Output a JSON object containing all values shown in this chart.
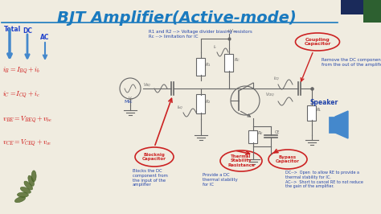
{
  "title": "BJT Amplifier(Active-mode)",
  "title_color": "#1a7abf",
  "title_fontsize": 14,
  "bg_color": "#f0ece0",
  "left_labels": {
    "total": "Total",
    "dc": "DC",
    "ac": "AC",
    "eq1": "$i_B= I_{BQ} + i_b$",
    "eq2": "$i_C= I_{CQ} + i_c$",
    "eq3": "$v_{BE}= V_{BEQ} + v_{be}$",
    "eq4": "$v_{CE}= V_{CEQ} + v_{ce}$"
  },
  "annotations": {
    "coupling": "Coupling\nCapacitor",
    "blocking": "Blocknig\nCapacitor",
    "thermal": "Thermal\nStability\nResistance",
    "bypass": "Bypass\nCapacitor",
    "coupling_desc": "Remove the DC component\nfrom the out of the amplifier",
    "blocking_desc": "Blocks the DC\ncomponent from\nthe input of the\namplifier",
    "thermal_desc": "Provide a DC\nthermal stability\nfor IC",
    "bypass_desc": "DC-->  Open  to allow RE to provide a\nthermal stability for IC.\nAC-->  Short to cancel RE to not reduce\nthe gain of the amplifier.",
    "r1r2": "R1 and R2 --> Voltage divider biasing resistors\nRc --> limitation for IC",
    "mic": "Mic",
    "speaker": "Speaker"
  },
  "arrow_color_blue": "#4488cc",
  "annotation_color_red": "#cc2222",
  "annotation_color_blue": "#2244aa",
  "equation_color": "#cc0000",
  "nav_color": "#2244cc",
  "corner_blue": "#1a2a5a",
  "corner_green": "#2d6030"
}
